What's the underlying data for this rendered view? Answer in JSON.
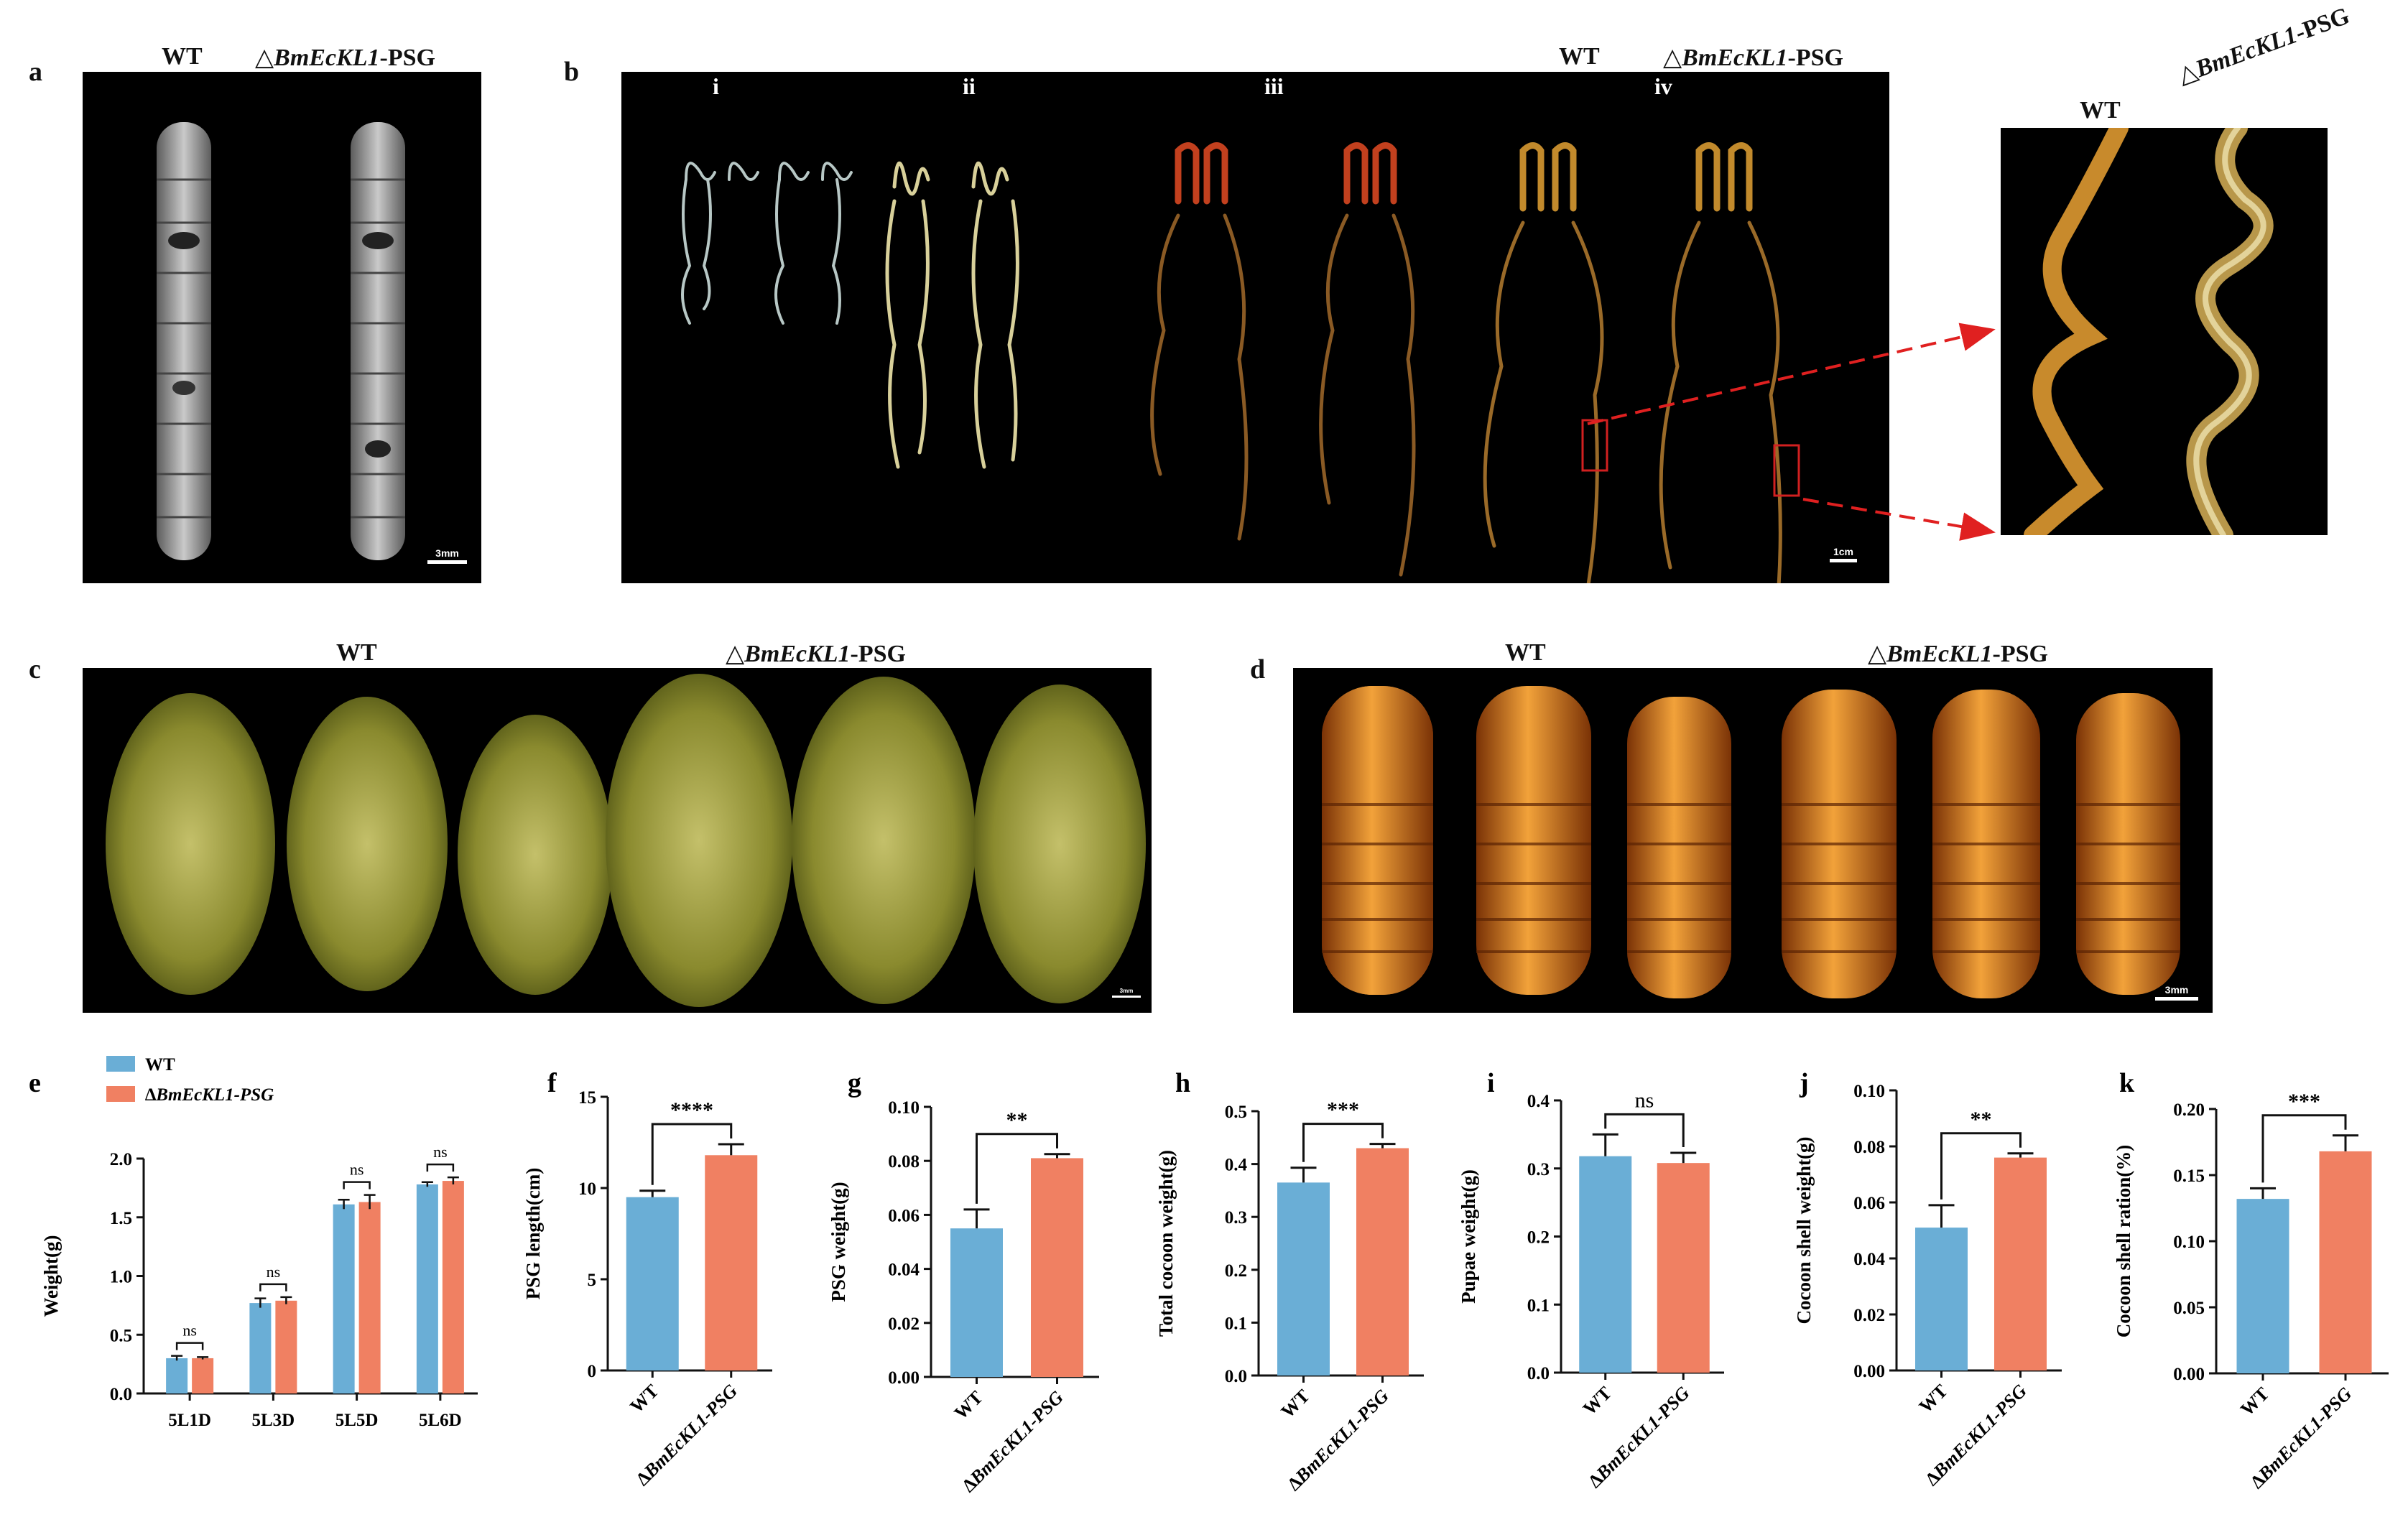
{
  "panels": {
    "a": {
      "label": "a",
      "groups": [
        "WT",
        "△BmEcKL1-PSG"
      ],
      "group_wt": "WT",
      "group_mut_sym": "△",
      "group_mut_gene": "BmEcKL1",
      "group_mut_suffix": "-PSG",
      "scale": "3mm"
    },
    "b": {
      "label": "b",
      "stages": [
        "i",
        "ii",
        "iii",
        "iv"
      ],
      "group_wt": "WT",
      "group_mut_sym": "△",
      "group_mut_gene": "BmEcKL1",
      "group_mut_suffix": "-PSG",
      "scale": "1cm"
    },
    "b_zoom": {
      "group_wt": "WT",
      "group_mut_sym": "△",
      "group_mut_gene": "BmEcKL1",
      "group_mut_suffix": "-PSG"
    },
    "c": {
      "label": "c",
      "group_wt": "WT",
      "group_mut_sym": "△",
      "group_mut_gene": "BmEcKL1",
      "group_mut_suffix": "-PSG",
      "scale": "3mm"
    },
    "d": {
      "label": "d",
      "group_wt": "WT",
      "group_mut_sym": "△",
      "group_mut_gene": "BmEcKL1",
      "group_mut_suffix": "-PSG",
      "scale": "3mm"
    }
  },
  "colors": {
    "wt": "#6aaed6",
    "mut": "#f08062",
    "background": "#000000"
  },
  "chart_data": [
    {
      "id": "e",
      "type": "bar",
      "label": "e",
      "categories": [
        "5L1D",
        "5L3D",
        "5L5D",
        "5L6D"
      ],
      "series": [
        {
          "name": "WT",
          "values": [
            0.3,
            0.77,
            1.61,
            1.78
          ],
          "errors": [
            0.02,
            0.04,
            0.04,
            0.02
          ]
        },
        {
          "name": "∆BmEcKL1-PSG",
          "values": [
            0.3,
            0.79,
            1.63,
            1.81
          ],
          "errors": [
            0.01,
            0.03,
            0.06,
            0.03
          ]
        }
      ],
      "ylabel": "Weight(g)",
      "ylim": [
        0,
        2.0
      ],
      "yticks": [
        "0.0",
        "0.5",
        "1.0",
        "1.5",
        "2.0"
      ],
      "significance": [
        "ns",
        "ns",
        "ns",
        "ns"
      ],
      "legend_position": "top-left"
    },
    {
      "id": "f",
      "type": "bar",
      "label": "f",
      "categories": [
        "WT",
        "∆BmEcKL1-PSG"
      ],
      "values": [
        9.5,
        11.8
      ],
      "errors": [
        0.35,
        0.6
      ],
      "ylabel": "PSG length(cm)",
      "ylim": [
        0,
        15
      ],
      "yticks": [
        "0",
        "5",
        "10",
        "15"
      ],
      "significance": "****"
    },
    {
      "id": "g",
      "type": "bar",
      "label": "g",
      "categories": [
        "WT",
        "∆BmEcKL1-PSG"
      ],
      "values": [
        0.055,
        0.081
      ],
      "errors": [
        0.007,
        0.0015
      ],
      "ylabel": "PSG weight(g)",
      "ylim": [
        0,
        0.1
      ],
      "yticks": [
        "0.00",
        "0.02",
        "0.04",
        "0.06",
        "0.08",
        "0.10"
      ],
      "significance": "**"
    },
    {
      "id": "h",
      "type": "bar",
      "label": "h",
      "categories": [
        "WT",
        "∆BmEcKL1-PSG"
      ],
      "values": [
        0.365,
        0.43
      ],
      "errors": [
        0.028,
        0.008
      ],
      "ylabel": "Total cocoon weight(g)",
      "ylim": [
        0,
        0.5
      ],
      "yticks": [
        "0.0",
        "0.1",
        "0.2",
        "0.3",
        "0.4",
        "0.5"
      ],
      "significance": "***"
    },
    {
      "id": "i",
      "type": "bar",
      "label": "i",
      "categories": [
        "WT",
        "∆BmEcKL1-PSG"
      ],
      "values": [
        0.318,
        0.308
      ],
      "errors": [
        0.032,
        0.015
      ],
      "ylabel": "Pupae weight(g)",
      "ylim": [
        0,
        0.4
      ],
      "yticks": [
        "0.0",
        "0.1",
        "0.2",
        "0.3",
        "0.4"
      ],
      "significance": "ns"
    },
    {
      "id": "j",
      "type": "bar",
      "label": "j",
      "categories": [
        "WT",
        "∆BmEcKL1-PSG"
      ],
      "values": [
        0.051,
        0.076
      ],
      "errors": [
        0.008,
        0.0015
      ],
      "ylabel": "Cocoon shell weight(g)",
      "ylim": [
        0,
        0.1
      ],
      "yticks": [
        "0.00",
        "0.02",
        "0.04",
        "0.06",
        "0.08",
        "0.10"
      ],
      "significance": "**"
    },
    {
      "id": "k",
      "type": "bar",
      "label": "k",
      "categories": [
        "WT",
        "∆BmEcKL1-PSG"
      ],
      "values": [
        0.132,
        0.168
      ],
      "errors": [
        0.008,
        0.012
      ],
      "ylabel": "Cocoon shell ration(%)",
      "ylim": [
        0,
        0.2
      ],
      "yticks": [
        "0.00",
        "0.05",
        "0.10",
        "0.15",
        "0.20"
      ],
      "significance": "***"
    }
  ]
}
